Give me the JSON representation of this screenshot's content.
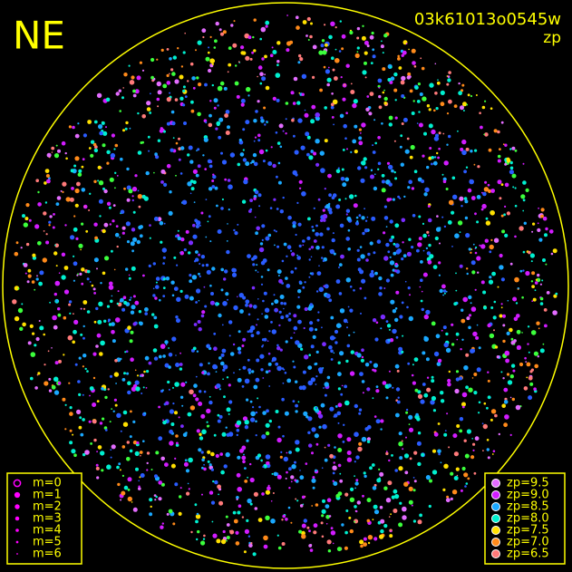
{
  "corner_label": "NE",
  "frame_id": "03k61013o0545w",
  "mode": "zp",
  "magnitude_legend": {
    "color": "#ff00ff",
    "entries": [
      "m=0",
      "m=1",
      "m=2",
      "m=3",
      "m=4",
      "m=5",
      "m=6"
    ]
  },
  "zp_legend": {
    "entries": [
      {
        "label": "zp=9.5",
        "color": "#e36cff"
      },
      {
        "label": "zp=9.0",
        "color": "#d21cff"
      },
      {
        "label": "zp=8.5",
        "color": "#1aa8ff"
      },
      {
        "label": "zp=8.0",
        "color": "#00f0d0"
      },
      {
        "label": "zp=7.5",
        "color": "#ffe000"
      },
      {
        "label": "zp=7.0",
        "color": "#ff8a1a"
      },
      {
        "label": "zp=6.5",
        "color": "#ff7a7a"
      }
    ]
  }
}
